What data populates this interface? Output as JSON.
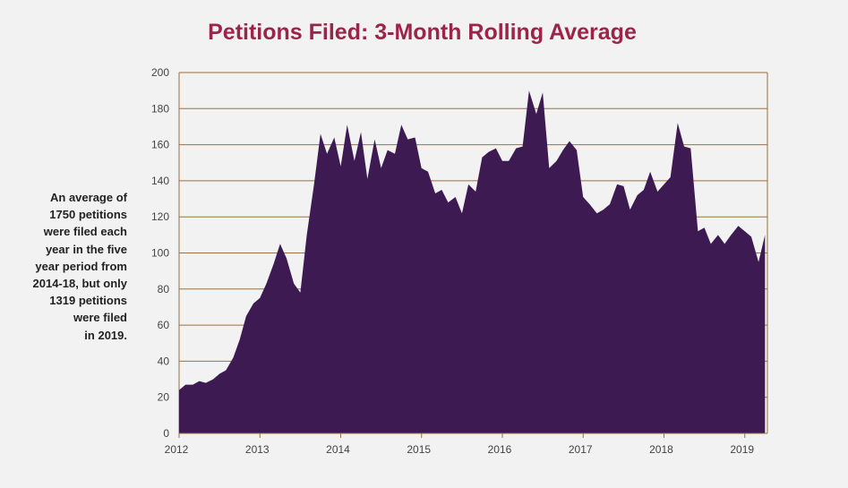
{
  "chart_data": {
    "type": "area",
    "title": "Petitions Filed: 3-Month Rolling Average",
    "xlabel": "",
    "ylabel": "",
    "ylim": [
      0,
      200
    ],
    "yticks": [
      0,
      20,
      40,
      60,
      80,
      100,
      120,
      140,
      160,
      180,
      200
    ],
    "xlim": [
      2012,
      2019.28
    ],
    "xticks": [
      2012,
      2013,
      2014,
      2015,
      2016,
      2017,
      2018,
      2019
    ],
    "xtick_labels": [
      "2012",
      "2013",
      "2014",
      "2015",
      "2016",
      "2017",
      "2018",
      "2019"
    ],
    "grid": "horizontal",
    "colors": {
      "fill": "#3e1a52",
      "gridline": "#9c6f3f",
      "title": "#9b2449",
      "tick_text": "#444444",
      "background": "#f2f2f2"
    },
    "series": [
      {
        "x": [
          2012.0,
          2012.08,
          2012.17,
          2012.25,
          2012.33,
          2012.42,
          2012.5,
          2012.58,
          2012.67,
          2012.75,
          2012.83,
          2012.92,
          2013.0,
          2013.08,
          2013.17,
          2013.25,
          2013.33,
          2013.42,
          2013.5,
          2013.58,
          2013.67,
          2013.75,
          2013.83,
          2013.92,
          2014.0,
          2014.08,
          2014.17,
          2014.25,
          2014.33,
          2014.42,
          2014.5,
          2014.58,
          2014.67,
          2014.75,
          2014.83,
          2014.92,
          2015.0,
          2015.08,
          2015.17,
          2015.25,
          2015.33,
          2015.42,
          2015.5,
          2015.58,
          2015.67,
          2015.75,
          2015.83,
          2015.92,
          2016.0,
          2016.08,
          2016.17,
          2016.25,
          2016.33,
          2016.42,
          2016.5,
          2016.58,
          2016.67,
          2016.75,
          2016.83,
          2016.92,
          2017.0,
          2017.08,
          2017.17,
          2017.25,
          2017.33,
          2017.42,
          2017.5,
          2017.58,
          2017.67,
          2017.75,
          2017.83,
          2017.92,
          2018.0,
          2018.08,
          2018.17,
          2018.25,
          2018.33,
          2018.42,
          2018.5,
          2018.58,
          2018.67,
          2018.75,
          2018.83,
          2018.92,
          2019.0,
          2019.08,
          2019.17,
          2019.25
        ],
        "values": [
          24,
          27,
          27,
          29,
          28,
          30,
          33,
          35,
          42,
          52,
          65,
          72,
          75,
          83,
          94,
          105,
          97,
          83,
          78,
          110,
          138,
          166,
          155,
          164,
          148,
          171,
          151,
          167,
          141,
          163,
          147,
          157,
          155,
          171,
          163,
          164,
          147,
          145,
          133,
          135,
          128,
          131,
          122,
          138,
          134,
          153,
          156,
          158,
          151,
          151,
          158,
          159,
          190,
          177,
          189,
          147,
          151,
          157,
          162,
          157,
          131,
          127,
          122,
          124,
          127,
          138,
          137,
          124,
          132,
          135,
          145,
          134,
          138,
          142,
          172,
          159,
          158,
          112,
          114,
          105,
          110,
          105,
          110,
          115,
          112,
          109,
          95,
          110
        ]
      }
    ]
  },
  "annotation": {
    "lines": [
      "An average of",
      "1750 petitions",
      "were filed each",
      "year in the five",
      "year period from",
      "2014-18, but only",
      "1319 petitions",
      "were filed",
      "in 2019."
    ]
  }
}
